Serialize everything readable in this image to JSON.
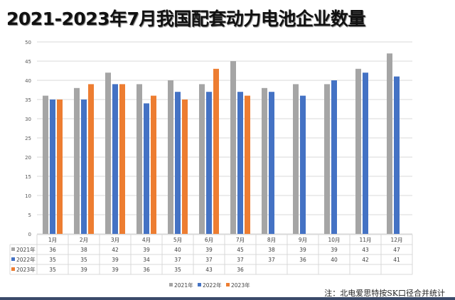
{
  "chart_data": {
    "type": "bar",
    "title": "2021-2023年7月我国配套动力电池企业数量",
    "categories": [
      "1月",
      "2月",
      "3月",
      "4月",
      "5月",
      "6月",
      "7月",
      "8月",
      "9月",
      "10月",
      "11月",
      "12月"
    ],
    "series": [
      {
        "name": "2021年",
        "color": "#a5a5a5",
        "values": [
          36,
          38,
          42,
          39,
          40,
          39,
          45,
          38,
          39,
          39,
          43,
          47
        ]
      },
      {
        "name": "2022年",
        "color": "#4472c4",
        "values": [
          35,
          35,
          39,
          34,
          37,
          37,
          37,
          37,
          36,
          40,
          42,
          41
        ]
      },
      {
        "name": "2023年",
        "color": "#ed7d31",
        "values": [
          35,
          39,
          39,
          36,
          35,
          43,
          36,
          null,
          null,
          null,
          null,
          null
        ]
      }
    ],
    "ylim": [
      0,
      50
    ],
    "yticks": [
      0,
      5,
      10,
      15,
      20,
      25,
      30,
      35,
      40,
      45,
      50
    ],
    "grid": true,
    "data_table": true,
    "legend": "bottom",
    "xlabel": "",
    "ylabel": ""
  },
  "note": "注：北电爱思特按SK口径合并统计"
}
